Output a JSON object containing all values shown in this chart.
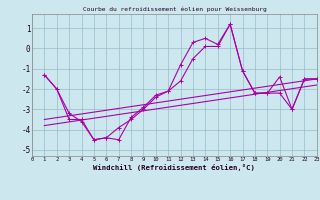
{
  "title": "Courbe du refroidissement éolien pour Weissenburg",
  "xlabel": "Windchill (Refroidissement éolien,°C)",
  "bg_color": "#cce8ee",
  "grid_color": "#99bbcc",
  "line_color": "#aa00aa",
  "xlim": [
    0,
    23
  ],
  "ylim": [
    -5.3,
    1.7
  ],
  "yticks": [
    -5,
    -4,
    -3,
    -2,
    -1,
    0,
    1
  ],
  "xticks": [
    0,
    1,
    2,
    3,
    4,
    5,
    6,
    7,
    8,
    9,
    10,
    11,
    12,
    13,
    14,
    15,
    16,
    17,
    18,
    19,
    20,
    21,
    22,
    23
  ],
  "line1_x": [
    1,
    2,
    3,
    4,
    5,
    6,
    7,
    8,
    9,
    10,
    11,
    12,
    13,
    14,
    15,
    16,
    17,
    18,
    19,
    20,
    21,
    22,
    23
  ],
  "line1_y": [
    -1.3,
    -2.0,
    -3.5,
    -3.5,
    -4.5,
    -4.4,
    -3.9,
    -3.5,
    -3.0,
    -2.4,
    -2.1,
    -0.8,
    0.3,
    0.5,
    0.2,
    1.2,
    -1.1,
    -2.2,
    -2.2,
    -1.4,
    -3.0,
    -1.5,
    -1.5
  ],
  "line2_x": [
    1,
    2,
    3,
    4,
    5,
    6,
    7,
    8,
    9,
    10,
    11,
    12,
    13,
    14,
    15,
    16,
    17,
    18,
    19,
    20,
    21,
    22,
    23
  ],
  "line2_y": [
    -1.3,
    -2.0,
    -3.2,
    -3.6,
    -4.5,
    -4.4,
    -4.5,
    -3.4,
    -2.9,
    -2.3,
    -2.1,
    -1.6,
    -0.5,
    0.1,
    0.1,
    1.2,
    -1.1,
    -2.2,
    -2.2,
    -2.2,
    -3.0,
    -1.5,
    -1.5
  ],
  "line3_x": [
    1,
    23
  ],
  "line3_y": [
    -3.5,
    -1.5
  ],
  "line4_x": [
    1,
    23
  ],
  "line4_y": [
    -3.8,
    -1.8
  ]
}
